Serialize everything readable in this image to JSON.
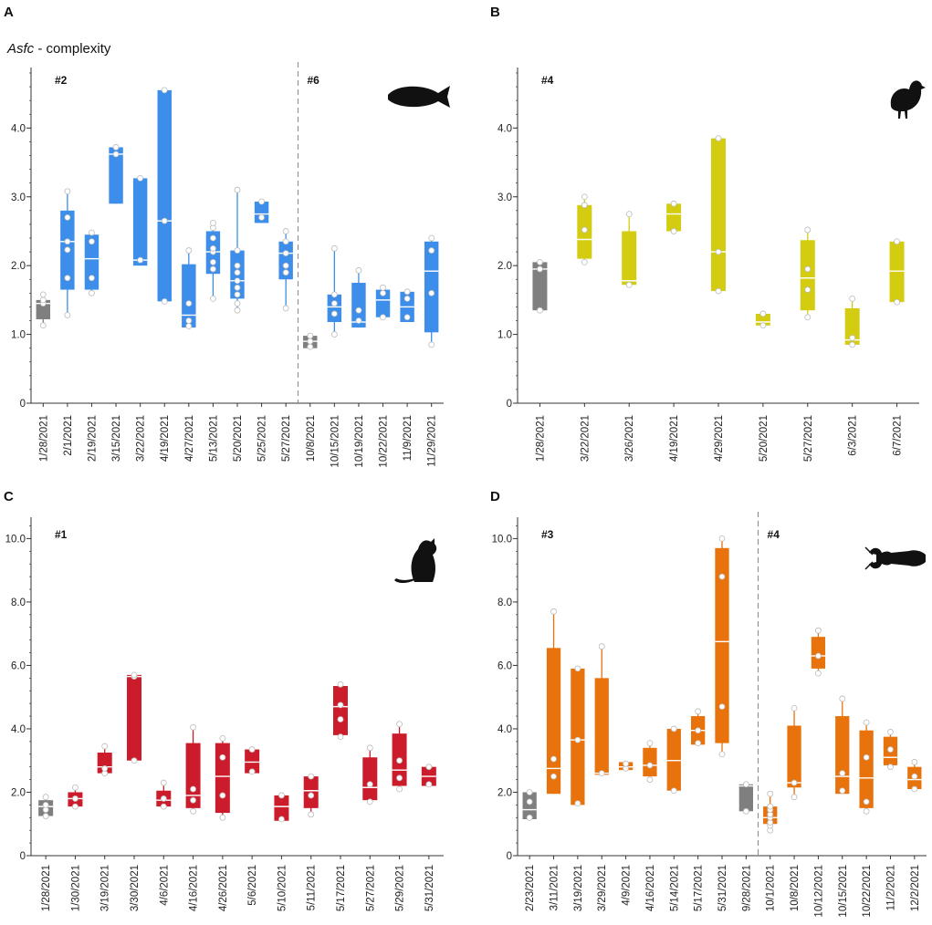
{
  "figure": {
    "y_title": {
      "italic": "Asfc",
      "rest": " - complexity"
    }
  },
  "chart_data": [
    {
      "panel": "A",
      "type": "box",
      "ylim": [
        0,
        4.8
      ],
      "yticks": [
        0,
        1.0,
        2.0,
        3.0,
        4.0
      ],
      "ytick_labels": [
        "0",
        "1.0",
        "2.0",
        "3.0",
        "4.0"
      ],
      "grid": false,
      "color": "#3c8eea",
      "control_color": "#7f7f7f",
      "icon": "fish",
      "groups": [
        {
          "label": "#2",
          "start": 0
        },
        {
          "label": "#6",
          "start": 11
        }
      ],
      "boxes": [
        {
          "date": "1/28/2021",
          "control": true,
          "min": 1.13,
          "q1": 1.22,
          "median": 1.45,
          "q3": 1.5,
          "max": 1.58,
          "points": [
            1.13,
            1.45,
            1.5,
            1.58
          ]
        },
        {
          "date": "2/1/2021",
          "min": 1.28,
          "q1": 1.65,
          "median": 2.35,
          "q3": 2.8,
          "max": 3.08,
          "points": [
            1.28,
            1.82,
            2.23,
            2.35,
            2.7,
            3.08
          ]
        },
        {
          "date": "2/19/2021",
          "min": 1.6,
          "q1": 1.65,
          "median": 2.1,
          "q3": 2.45,
          "max": 2.48,
          "points": [
            1.6,
            1.82,
            2.35,
            2.48
          ]
        },
        {
          "date": "3/15/2021",
          "min": 2.9,
          "q1": 2.9,
          "median": 3.62,
          "q3": 3.72,
          "max": 3.72,
          "points": [
            3.62,
            3.72
          ]
        },
        {
          "date": "3/22/2021",
          "min": 2.0,
          "q1": 2.0,
          "median": 2.08,
          "q3": 3.27,
          "max": 3.27,
          "points": [
            2.08,
            3.27
          ]
        },
        {
          "date": "4/19/2021",
          "min": 1.48,
          "q1": 1.48,
          "median": 2.65,
          "q3": 4.55,
          "max": 4.55,
          "points": [
            1.48,
            2.65,
            4.55
          ]
        },
        {
          "date": "4/27/2021",
          "min": 1.1,
          "q1": 1.1,
          "median": 1.28,
          "q3": 2.02,
          "max": 2.22,
          "points": [
            1.12,
            1.2,
            1.45,
            2.22
          ]
        },
        {
          "date": "5/13/2021",
          "min": 1.52,
          "q1": 1.88,
          "median": 2.2,
          "q3": 2.5,
          "max": 2.62,
          "points": [
            1.52,
            1.95,
            2.05,
            2.2,
            2.25,
            2.4,
            2.55,
            2.62
          ]
        },
        {
          "date": "5/20/2021",
          "min": 1.35,
          "q1": 1.52,
          "median": 1.78,
          "q3": 2.22,
          "max": 3.1,
          "points": [
            1.35,
            1.45,
            1.58,
            1.68,
            1.78,
            1.9,
            2.0,
            2.22,
            3.1
          ]
        },
        {
          "date": "5/25/2021",
          "min": 2.62,
          "q1": 2.62,
          "median": 2.75,
          "q3": 2.93,
          "max": 2.93,
          "points": [
            2.7,
            2.93
          ]
        },
        {
          "date": "5/27/2021",
          "min": 1.38,
          "q1": 1.8,
          "median": 2.18,
          "q3": 2.35,
          "max": 2.5,
          "points": [
            1.38,
            1.9,
            2.0,
            2.18,
            2.35,
            2.5
          ]
        },
        {
          "date": "10/8/2021",
          "control": true,
          "min": 0.8,
          "q1": 0.8,
          "median": 0.9,
          "q3": 0.98,
          "max": 1.0,
          "points": [
            0.82,
            0.9,
            0.98
          ]
        },
        {
          "date": "10/15/2021",
          "min": 1.0,
          "q1": 1.18,
          "median": 1.4,
          "q3": 1.58,
          "max": 2.25,
          "points": [
            1.0,
            1.3,
            1.45,
            1.58,
            2.25
          ]
        },
        {
          "date": "10/19/2021",
          "min": 1.1,
          "q1": 1.1,
          "median": 1.18,
          "q3": 1.75,
          "max": 1.93,
          "points": [
            1.2,
            1.35,
            1.93
          ]
        },
        {
          "date": "10/22/2021",
          "min": 1.25,
          "q1": 1.25,
          "median": 1.5,
          "q3": 1.65,
          "max": 1.68,
          "points": [
            1.25,
            1.6,
            1.68
          ]
        },
        {
          "date": "11/9/2021",
          "min": 1.18,
          "q1": 1.18,
          "median": 1.4,
          "q3": 1.62,
          "max": 1.62,
          "points": [
            1.25,
            1.52,
            1.62
          ]
        },
        {
          "date": "11/29/2021",
          "min": 0.85,
          "q1": 1.03,
          "median": 1.92,
          "q3": 2.35,
          "max": 2.4,
          "points": [
            0.85,
            1.6,
            2.22,
            2.4
          ]
        }
      ]
    },
    {
      "panel": "B",
      "type": "box",
      "ylim": [
        0,
        4.8
      ],
      "yticks": [
        0,
        1.0,
        2.0,
        3.0,
        4.0
      ],
      "ytick_labels": [
        "0",
        "1.0",
        "2.0",
        "3.0",
        "4.0"
      ],
      "grid": false,
      "color": "#d4cc10",
      "control_color": "#7f7f7f",
      "icon": "bird",
      "groups": [
        {
          "label": "#4",
          "start": 0
        }
      ],
      "boxes": [
        {
          "date": "1/28/2021",
          "control": true,
          "min": 1.35,
          "q1": 1.35,
          "median": 1.95,
          "q3": 2.05,
          "max": 2.05,
          "points": [
            1.35,
            1.95,
            2.05
          ]
        },
        {
          "date": "3/22/2021",
          "min": 2.05,
          "q1": 2.1,
          "median": 2.38,
          "q3": 2.88,
          "max": 3.0,
          "points": [
            2.05,
            2.52,
            2.88,
            3.0
          ]
        },
        {
          "date": "3/26/2021",
          "min": 1.72,
          "q1": 1.72,
          "median": 1.78,
          "q3": 2.5,
          "max": 2.75,
          "points": [
            1.72,
            2.75
          ]
        },
        {
          "date": "4/19/2021",
          "min": 2.5,
          "q1": 2.5,
          "median": 2.75,
          "q3": 2.9,
          "max": 2.9,
          "points": [
            2.5,
            2.9
          ]
        },
        {
          "date": "4/29/2021",
          "min": 1.63,
          "q1": 1.63,
          "median": 2.2,
          "q3": 3.85,
          "max": 3.85,
          "points": [
            1.63,
            2.2,
            3.85
          ]
        },
        {
          "date": "5/20/2021",
          "min": 1.13,
          "q1": 1.13,
          "median": 1.18,
          "q3": 1.3,
          "max": 1.3,
          "points": [
            1.13,
            1.3
          ]
        },
        {
          "date": "5/27/2021",
          "min": 1.25,
          "q1": 1.35,
          "median": 1.82,
          "q3": 2.37,
          "max": 2.52,
          "points": [
            1.25,
            1.65,
            1.95,
            2.52
          ]
        },
        {
          "date": "6/3/2021",
          "min": 0.85,
          "q1": 0.85,
          "median": 0.92,
          "q3": 1.38,
          "max": 1.52,
          "points": [
            0.85,
            0.95,
            1.52
          ]
        },
        {
          "date": "6/7/2021",
          "min": 1.47,
          "q1": 1.47,
          "median": 1.92,
          "q3": 2.35,
          "max": 2.35,
          "points": [
            1.47,
            2.35
          ]
        }
      ]
    },
    {
      "panel": "C",
      "type": "box",
      "ylim": [
        0,
        10.5
      ],
      "yticks": [
        0,
        2.0,
        4.0,
        6.0,
        8.0,
        10.0
      ],
      "ytick_labels": [
        "0",
        "2.0",
        "4.0",
        "6.0",
        "8.0",
        "10.0"
      ],
      "grid": false,
      "color": "#cc1c2c",
      "control_color": "#7f7f7f",
      "icon": "rat",
      "groups": [
        {
          "label": "#1",
          "start": 0
        }
      ],
      "boxes": [
        {
          "date": "1/28/2021",
          "control": true,
          "min": 1.25,
          "q1": 1.25,
          "median": 1.55,
          "q3": 1.75,
          "max": 1.85,
          "points": [
            1.25,
            1.45,
            1.6,
            1.85
          ]
        },
        {
          "date": "1/30/2021",
          "min": 1.55,
          "q1": 1.55,
          "median": 1.8,
          "q3": 2.0,
          "max": 2.15,
          "points": [
            1.55,
            1.8,
            2.15
          ]
        },
        {
          "date": "3/19/2021",
          "min": 2.6,
          "q1": 2.6,
          "median": 2.8,
          "q3": 3.25,
          "max": 3.45,
          "points": [
            2.6,
            2.75,
            3.45
          ]
        },
        {
          "date": "3/30/2021",
          "min": 3.0,
          "q1": 3.0,
          "median": 5.65,
          "q3": 5.7,
          "max": 5.7,
          "points": [
            3.0,
            5.65,
            5.7
          ]
        },
        {
          "date": "4/6/2021",
          "min": 1.55,
          "q1": 1.55,
          "median": 1.75,
          "q3": 2.05,
          "max": 2.3,
          "points": [
            1.55,
            1.8,
            2.3
          ]
        },
        {
          "date": "4/16/2021",
          "min": 1.4,
          "q1": 1.5,
          "median": 1.9,
          "q3": 3.55,
          "max": 4.1,
          "points": [
            1.4,
            1.75,
            2.1,
            4.05
          ]
        },
        {
          "date": "4/26/2021",
          "min": 1.2,
          "q1": 1.35,
          "median": 2.5,
          "q3": 3.55,
          "max": 3.7,
          "points": [
            1.2,
            1.9,
            3.1,
            3.7
          ]
        },
        {
          "date": "5/6/2021",
          "min": 2.6,
          "q1": 2.6,
          "median": 2.95,
          "q3": 3.35,
          "max": 3.4,
          "points": [
            2.65,
            3.35
          ]
        },
        {
          "date": "5/10/2021",
          "min": 1.1,
          "q1": 1.1,
          "median": 1.55,
          "q3": 1.9,
          "max": 1.9,
          "points": [
            1.15,
            1.9
          ]
        },
        {
          "date": "5/11/2021",
          "min": 1.3,
          "q1": 1.5,
          "median": 2.05,
          "q3": 2.5,
          "max": 2.55,
          "points": [
            1.3,
            1.9,
            2.5
          ]
        },
        {
          "date": "5/17/2021",
          "min": 3.7,
          "q1": 3.8,
          "median": 4.7,
          "q3": 5.35,
          "max": 5.45,
          "points": [
            3.75,
            4.3,
            4.75,
            5.4
          ]
        },
        {
          "date": "5/27/2021",
          "min": 1.7,
          "q1": 1.75,
          "median": 2.15,
          "q3": 3.1,
          "max": 3.4,
          "points": [
            1.7,
            2.25,
            3.4
          ]
        },
        {
          "date": "5/29/2021",
          "min": 2.1,
          "q1": 2.2,
          "median": 2.7,
          "q3": 3.85,
          "max": 4.2,
          "points": [
            2.1,
            2.45,
            3.0,
            4.15
          ]
        },
        {
          "date": "5/31/2021",
          "min": 2.2,
          "q1": 2.2,
          "median": 2.5,
          "q3": 2.8,
          "max": 2.8,
          "points": [
            2.25,
            2.8
          ]
        }
      ]
    },
    {
      "panel": "D",
      "type": "box",
      "ylim": [
        0,
        10.5
      ],
      "yticks": [
        0,
        2.0,
        4.0,
        6.0,
        8.0,
        10.0
      ],
      "ytick_labels": [
        "0",
        "2.0",
        "4.0",
        "6.0",
        "8.0",
        "10.0"
      ],
      "grid": false,
      "color": "#e8720c",
      "control_color": "#7f7f7f",
      "icon": "crayfish",
      "groups": [
        {
          "label": "#3",
          "start": 0
        },
        {
          "label": "#4",
          "start": 10
        }
      ],
      "boxes": [
        {
          "date": "2/23/2021",
          "control": true,
          "min": 1.15,
          "q1": 1.15,
          "median": 1.45,
          "q3": 2.0,
          "max": 2.0,
          "points": [
            1.2,
            1.7,
            2.0
          ]
        },
        {
          "date": "3/11/2021",
          "min": 1.95,
          "q1": 1.95,
          "median": 2.75,
          "q3": 6.55,
          "max": 7.7,
          "points": [
            2.5,
            3.05,
            7.7
          ]
        },
        {
          "date": "3/19/2021",
          "min": 1.6,
          "q1": 1.6,
          "median": 3.65,
          "q3": 5.9,
          "max": 5.9,
          "points": [
            1.65,
            3.65,
            5.9
          ]
        },
        {
          "date": "3/29/2021",
          "min": 2.55,
          "q1": 2.55,
          "median": 2.6,
          "q3": 5.6,
          "max": 6.6,
          "points": [
            2.6,
            6.6
          ]
        },
        {
          "date": "4/9/2021",
          "min": 2.7,
          "q1": 2.7,
          "median": 2.8,
          "q3": 2.95,
          "max": 2.95,
          "points": [
            2.75,
            2.9
          ]
        },
        {
          "date": "4/16/2021",
          "min": 2.4,
          "q1": 2.5,
          "median": 2.85,
          "q3": 3.4,
          "max": 3.55,
          "points": [
            2.4,
            2.85,
            3.55
          ]
        },
        {
          "date": "5/14/2021",
          "min": 2.05,
          "q1": 2.05,
          "median": 3.0,
          "q3": 4.0,
          "max": 4.0,
          "points": [
            2.05,
            4.0
          ]
        },
        {
          "date": "5/17/2021",
          "min": 3.5,
          "q1": 3.5,
          "median": 3.95,
          "q3": 4.4,
          "max": 4.55,
          "points": [
            3.55,
            3.95,
            4.55
          ]
        },
        {
          "date": "5/31/2021",
          "min": 3.2,
          "q1": 3.55,
          "median": 6.75,
          "q3": 9.7,
          "max": 10.0,
          "points": [
            3.2,
            4.7,
            8.8,
            10.0
          ]
        },
        {
          "date": "9/28/2021",
          "control": true,
          "min": 1.4,
          "q1": 1.4,
          "median": 2.2,
          "q3": 2.25,
          "max": 2.25,
          "points": [
            1.4,
            2.25
          ]
        },
        {
          "date": "10/1/2021",
          "min": 0.8,
          "q1": 1.0,
          "median": 1.2,
          "q3": 1.55,
          "max": 1.95,
          "points": [
            0.8,
            0.95,
            1.05,
            1.2,
            1.3,
            1.45,
            1.55,
            1.95
          ]
        },
        {
          "date": "10/8/2021",
          "min": 1.85,
          "q1": 2.15,
          "median": 2.3,
          "q3": 4.1,
          "max": 4.65,
          "points": [
            1.85,
            2.3,
            4.65
          ]
        },
        {
          "date": "10/12/2021",
          "min": 5.75,
          "q1": 5.9,
          "median": 6.3,
          "q3": 6.9,
          "max": 7.1,
          "points": [
            5.75,
            6.3,
            7.1
          ]
        },
        {
          "date": "10/15/2021",
          "min": 1.95,
          "q1": 1.95,
          "median": 2.5,
          "q3": 4.4,
          "max": 4.95,
          "points": [
            2.05,
            2.6,
            4.95
          ]
        },
        {
          "date": "10/22/2021",
          "min": 1.4,
          "q1": 1.5,
          "median": 2.45,
          "q3": 3.95,
          "max": 4.2,
          "points": [
            1.4,
            1.7,
            3.1,
            4.2
          ]
        },
        {
          "date": "11/2/2021",
          "min": 2.8,
          "q1": 2.85,
          "median": 3.1,
          "q3": 3.75,
          "max": 3.9,
          "points": [
            2.8,
            3.35,
            3.9
          ]
        },
        {
          "date": "12/2/2021",
          "min": 2.05,
          "q1": 2.1,
          "median": 2.4,
          "q3": 2.8,
          "max": 2.95,
          "points": [
            2.1,
            2.5,
            2.95
          ]
        }
      ]
    }
  ]
}
